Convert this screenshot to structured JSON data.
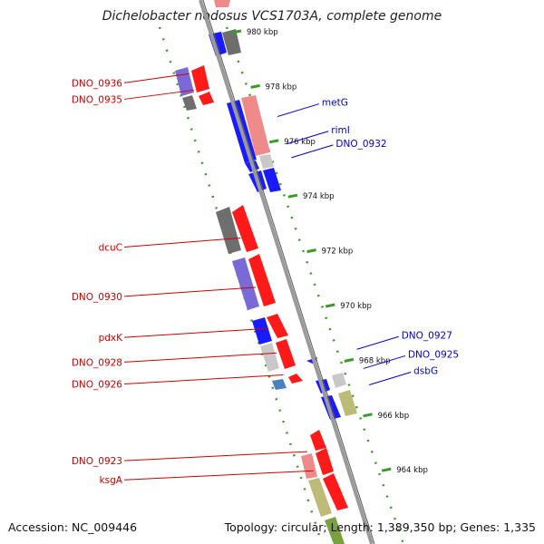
{
  "title": "Dichelobacter nodosus VCS1703A, complete genome",
  "footer": {
    "accession": "Accession: NC_009446",
    "summary": "Topology: circular; Length: 1,389,350 bp; Genes: 1,335"
  },
  "colors": {
    "backbone": "#9a9a9a",
    "tick": "#3a9a2a",
    "forward_label": "#cc0000",
    "reverse_label": "#0000cc",
    "red": "#ff1a1a",
    "blue": "#1a1aff",
    "gray": "#6e6e6e",
    "lightgray": "#c8c8c8",
    "pink": "#ee8a8a",
    "purple": "#7a6ad8",
    "khaki": "#bdbb78",
    "steel": "#4a80c0",
    "olive": "#7aa040"
  },
  "scale_labels": [
    {
      "text": "980 kbp",
      "pos": 980
    },
    {
      "text": "978 kbp",
      "pos": 978
    },
    {
      "text": "976 kbp",
      "pos": 976
    },
    {
      "text": "974 kbp",
      "pos": 974
    },
    {
      "text": "972 kbp",
      "pos": 972
    },
    {
      "text": "970 kbp",
      "pos": 970
    },
    {
      "text": "968 kbp",
      "pos": 968
    },
    {
      "text": "966 kbp",
      "pos": 966
    },
    {
      "text": "964 kbp",
      "pos": 964
    }
  ],
  "gene_labels_left": [
    {
      "text": "DNO_0936",
      "pos": 978.4
    },
    {
      "text": "DNO_0935",
      "pos": 977.8
    },
    {
      "text": "dcuC",
      "pos": 972.4
    },
    {
      "text": "DNO_0930",
      "pos": 970.6
    },
    {
      "text": "pdxK",
      "pos": 969.1
    },
    {
      "text": "DNO_0928",
      "pos": 968.2
    },
    {
      "text": "DNO_0926",
      "pos": 967.4
    },
    {
      "text": "DNO_0923",
      "pos": 964.6
    },
    {
      "text": "ksgA",
      "pos": 963.9
    }
  ],
  "gene_labels_right": [
    {
      "text": "metG",
      "pos": 977.1
    },
    {
      "text": "rimI",
      "pos": 976.1
    },
    {
      "text": "DNO_0932",
      "pos": 975.6
    },
    {
      "text": "DNO_0927",
      "pos": 968.6
    },
    {
      "text": "DNO_0925",
      "pos": 967.9
    },
    {
      "text": "dsbG",
      "pos": 967.3
    }
  ]
}
